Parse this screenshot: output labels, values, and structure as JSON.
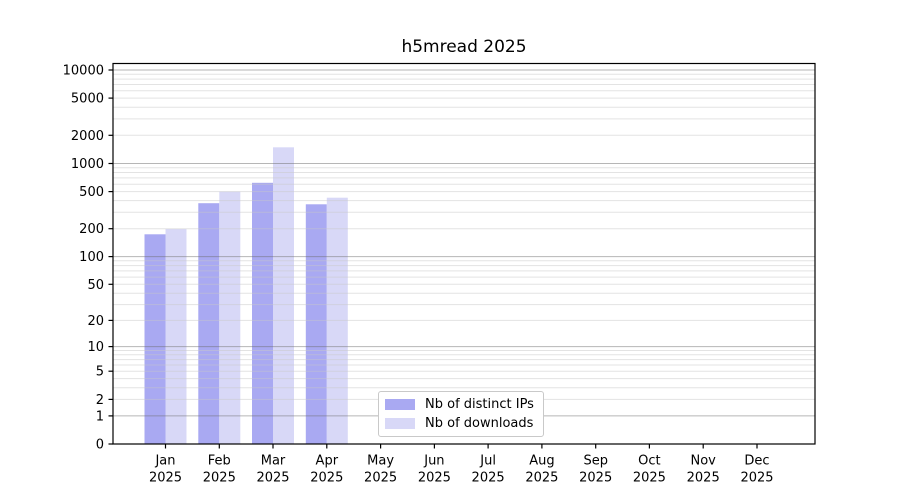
{
  "title": "h5mread 2025",
  "chart_data": {
    "type": "bar",
    "title": "h5mread 2025",
    "x_categories": [
      {
        "month": "Jan",
        "year": "2025"
      },
      {
        "month": "Feb",
        "year": "2025"
      },
      {
        "month": "Mar",
        "year": "2025"
      },
      {
        "month": "Apr",
        "year": "2025"
      },
      {
        "month": "May",
        "year": "2025"
      },
      {
        "month": "Jun",
        "year": "2025"
      },
      {
        "month": "Jul",
        "year": "2025"
      },
      {
        "month": "Aug",
        "year": "2025"
      },
      {
        "month": "Sep",
        "year": "2025"
      },
      {
        "month": "Oct",
        "year": "2025"
      },
      {
        "month": "Nov",
        "year": "2025"
      },
      {
        "month": "Dec",
        "year": "2025"
      }
    ],
    "series": [
      {
        "name": "Nb of distinct IPs",
        "color": "#a9a9f2",
        "values": [
          174,
          375,
          620,
          365,
          0,
          0,
          0,
          0,
          0,
          0,
          0,
          0
        ]
      },
      {
        "name": "Nb of downloads",
        "color": "#d8d8f7",
        "values": [
          198,
          500,
          1490,
          430,
          0,
          0,
          0,
          0,
          0,
          0,
          0,
          0
        ]
      }
    ],
    "y_scale": "log10(value+1)",
    "y_ticks": [
      0,
      1,
      2,
      5,
      10,
      20,
      50,
      100,
      200,
      500,
      1000,
      2000,
      5000,
      10000
    ],
    "ylim": [
      0,
      11500
    ],
    "grid": {
      "major_values": [
        1,
        10,
        100,
        1000,
        10000
      ],
      "minor_rule": "2-9 per decade"
    },
    "legend": {
      "position": "lower center",
      "items": [
        "Nb of distinct IPs",
        "Nb of downloads"
      ]
    }
  },
  "colors": {
    "background": "#ffffff",
    "axis": "#000000",
    "tick_label": "#000000",
    "major_grid": "rgba(110,110,110,0.5)",
    "minor_grid": "rgba(200,200,200,0.5)"
  }
}
